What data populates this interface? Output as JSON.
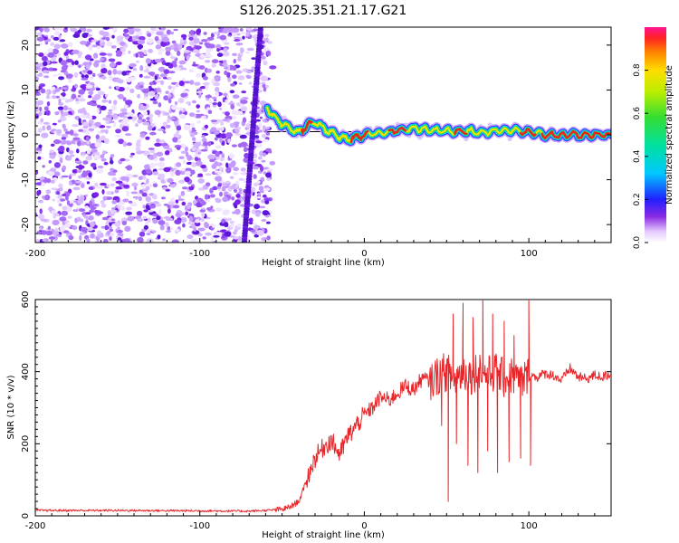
{
  "title": "S126.2025.351.21.17.G21",
  "chart_data": [
    {
      "type": "heatmap",
      "title": "S126.2025.351.21.17.G21",
      "xlabel": "Height of straight line (km)",
      "ylabel": "Frequency (Hz)",
      "xlim": [
        -200,
        150
      ],
      "ylim": [
        -24,
        24
      ],
      "xticks": [
        -200,
        -100,
        0,
        100
      ],
      "yticks": [
        -20,
        -10,
        0,
        10,
        20
      ],
      "noise_region_x": [
        -200,
        -57
      ],
      "vertical_streak_x": [
        -70,
        -65
      ],
      "frequency_trace": {
        "x": [
          -59,
          -55,
          -50,
          -45,
          -40,
          -35,
          -30,
          -25,
          -20,
          -15,
          -10,
          -5,
          0,
          10,
          20,
          30,
          40,
          50,
          60,
          70,
          80,
          90,
          100,
          110,
          120,
          130,
          140,
          150
        ],
        "y": [
          6,
          4,
          2.5,
          1.5,
          0.5,
          2,
          3,
          1.5,
          0.5,
          -0.5,
          -1,
          -0.5,
          0,
          0.5,
          1,
          1.5,
          1,
          0.8,
          1,
          0.5,
          1,
          1,
          0.5,
          0,
          0,
          0,
          0,
          0
        ]
      },
      "reference_line_y": 0.7,
      "colorbar": {
        "label": "Normalized spectral amplitude",
        "range": [
          0,
          1
        ],
        "ticks": [
          0.0,
          0.2,
          0.4,
          0.6,
          0.8
        ],
        "tick_labels": [
          "0.0",
          "0.2",
          "0.4",
          "0.6",
          "0.8"
        ]
      }
    },
    {
      "type": "line",
      "xlabel": "Height of straight line (km)",
      "ylabel": "SNR (10 * v/v)",
      "xlim": [
        -200,
        150
      ],
      "ylim": [
        0,
        600
      ],
      "xticks": [
        -200,
        -100,
        0,
        100
      ],
      "yticks": [
        0,
        200,
        400,
        600
      ],
      "color": "#e8262a",
      "series": [
        {
          "name": "SNR",
          "x": [
            -200,
            -150,
            -100,
            -70,
            -60,
            -50,
            -45,
            -40,
            -38,
            -35,
            -30,
            -25,
            -20,
            -15,
            -10,
            -5,
            0,
            5,
            10,
            15,
            20,
            25,
            30,
            35,
            40,
            45,
            50,
            55,
            60,
            65,
            70,
            75,
            80,
            85,
            90,
            95,
            100,
            105,
            110,
            115,
            120,
            125,
            130,
            135,
            140,
            145,
            150
          ],
          "y": [
            15,
            15,
            14,
            13,
            15,
            18,
            25,
            40,
            60,
            100,
            160,
            190,
            210,
            170,
            220,
            250,
            280,
            300,
            330,
            320,
            340,
            360,
            350,
            380,
            375,
            390,
            400,
            380,
            400,
            390,
            410,
            390,
            400,
            380,
            390,
            370,
            390,
            385,
            395,
            390,
            375,
            410,
            385,
            380,
            390,
            385,
            395
          ]
        }
      ],
      "spikes": [
        {
          "x": 47,
          "y": 250
        },
        {
          "x": 51,
          "y": 40
        },
        {
          "x": 54,
          "y": 560
        },
        {
          "x": 56,
          "y": 200
        },
        {
          "x": 60,
          "y": 590
        },
        {
          "x": 63,
          "y": 140
        },
        {
          "x": 66,
          "y": 550
        },
        {
          "x": 69,
          "y": 120
        },
        {
          "x": 72,
          "y": 600
        },
        {
          "x": 75,
          "y": 180
        },
        {
          "x": 78,
          "y": 560
        },
        {
          "x": 81,
          "y": 120
        },
        {
          "x": 85,
          "y": 540
        },
        {
          "x": 88,
          "y": 150
        },
        {
          "x": 91,
          "y": 500
        },
        {
          "x": 95,
          "y": 160
        },
        {
          "x": 100,
          "y": 600
        },
        {
          "x": 101,
          "y": 140
        }
      ]
    }
  ]
}
